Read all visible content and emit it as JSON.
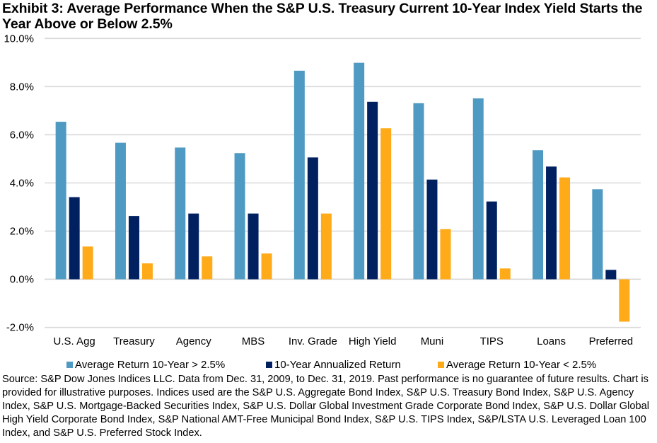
{
  "title": "Exhibit 3: Average Performance When the S&P U.S. Treasury Current 10-Year Index Yield Starts the Year Above or Below 2.5%",
  "chart_data": {
    "type": "bar",
    "title": "Exhibit 3: Average Performance When the S&P U.S. Treasury Current 10-Year Index Yield Starts the Year Above or Below 2.5%",
    "xlabel": "",
    "ylabel": "",
    "ylim": [
      -2.0,
      10.0
    ],
    "yticks": [
      -2.0,
      0.0,
      2.0,
      4.0,
      6.0,
      8.0,
      10.0
    ],
    "ytick_labels": [
      "-2.0%",
      "0.0%",
      "2.0%",
      "4.0%",
      "6.0%",
      "8.0%",
      "10.0%"
    ],
    "grid": true,
    "legend_position": "bottom",
    "categories": [
      "U.S. Agg",
      "Treasury",
      "Agency",
      "MBS",
      "Inv. Grade",
      "High Yield",
      "Muni",
      "TIPS",
      "Loans",
      "Preferred"
    ],
    "series": [
      {
        "name": "Average Return 10-Year > 2.5%",
        "color": "#4F9AC3",
        "values": [
          6.54,
          5.67,
          5.47,
          5.24,
          8.66,
          8.99,
          7.31,
          7.51,
          5.36,
          3.74
        ]
      },
      {
        "name": "10-Year Annualized Return",
        "color": "#002060",
        "values": [
          3.41,
          2.63,
          2.73,
          2.73,
          5.06,
          7.37,
          4.14,
          3.23,
          4.68,
          0.39
        ]
      },
      {
        "name": "Average Return 10-Year < 2.5%",
        "color": "#FFAB19",
        "values": [
          1.36,
          0.66,
          0.95,
          1.07,
          2.73,
          6.27,
          2.08,
          0.45,
          4.23,
          -1.76
        ]
      }
    ]
  },
  "footnote": "Source: S&P Dow Jones Indices LLC. Data from Dec. 31, 2009, to Dec. 31, 2019. Past performance is no guarantee of future results. Chart is provided for illustrative purposes. Indices used are the S&P U.S. Aggregate Bond Index, S&P U.S. Treasury Bond Index, S&P U.S. Agency Index, S&P U.S. Mortgage-Backed Securities Index, S&P U.S. Dollar Global Investment Grade Corporate Bond Index, S&P U.S. Dollar Global High Yield Corporate Bond Index, S&P National AMT-Free Municipal Bond Index, S&P U.S. TIPS Index, S&P/LSTA U.S. Leveraged Loan 100 Index, and S&P U.S. Preferred Stock Index."
}
